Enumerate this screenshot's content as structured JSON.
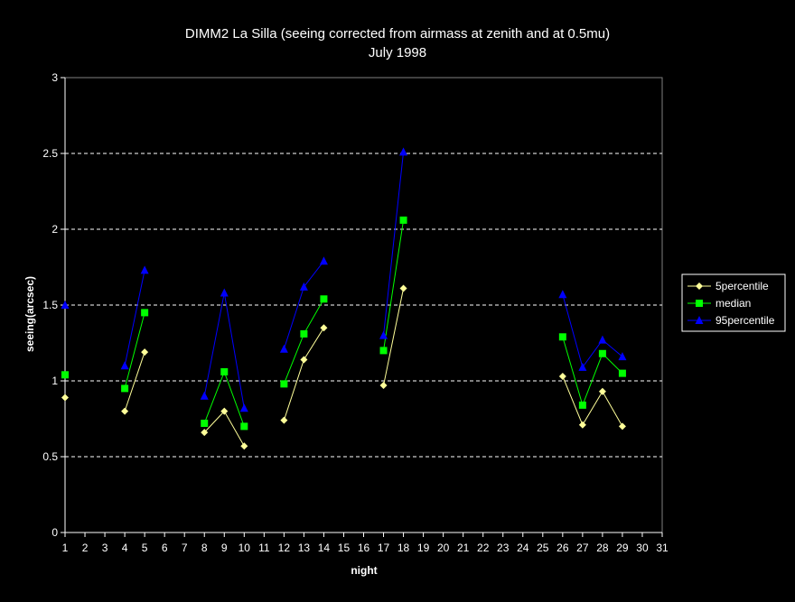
{
  "chart_data": {
    "type": "line",
    "title": "DIMM2 La Silla (seeing corrected from airmass at zenith and at 0.5mu)",
    "subtitle": "July 1998",
    "xlabel": "night",
    "ylabel": "seeing(arcsec)",
    "xlim": [
      1,
      31
    ],
    "ylim": [
      0,
      3
    ],
    "x_ticks": [
      "1",
      "2",
      "3",
      "4",
      "5",
      "6",
      "7",
      "8",
      "9",
      "10",
      "11",
      "12",
      "13",
      "14",
      "15",
      "16",
      "17",
      "18",
      "19",
      "20",
      "21",
      "22",
      "23",
      "24",
      "25",
      "26",
      "27",
      "28",
      "29",
      "30",
      "31"
    ],
    "y_ticks": [
      "0",
      "0.5",
      "1",
      "1.5",
      "2",
      "2.5",
      "3"
    ],
    "grid": "horizontal dashed",
    "legend_position": "right",
    "series": [
      {
        "name": "5percentile",
        "color": "#FFFF99",
        "marker": "diamond",
        "points": [
          [
            1,
            0.89
          ],
          [
            4,
            0.8
          ],
          [
            5,
            1.19
          ],
          [
            8,
            0.66
          ],
          [
            9,
            0.8
          ],
          [
            10,
            0.57
          ],
          [
            12,
            0.74
          ],
          [
            13,
            1.14
          ],
          [
            14,
            1.35
          ],
          [
            17,
            0.97
          ],
          [
            18,
            1.61
          ],
          [
            26,
            1.03
          ],
          [
            27,
            0.71
          ],
          [
            28,
            0.93
          ],
          [
            29,
            0.7
          ]
        ]
      },
      {
        "name": "median",
        "color": "#00FF00",
        "marker": "square",
        "points": [
          [
            1,
            1.04
          ],
          [
            4,
            0.95
          ],
          [
            5,
            1.45
          ],
          [
            8,
            0.72
          ],
          [
            9,
            1.06
          ],
          [
            10,
            0.7
          ],
          [
            12,
            0.98
          ],
          [
            13,
            1.31
          ],
          [
            14,
            1.54
          ],
          [
            17,
            1.2
          ],
          [
            18,
            2.06
          ],
          [
            26,
            1.29
          ],
          [
            27,
            0.84
          ],
          [
            28,
            1.18
          ],
          [
            29,
            1.05
          ]
        ]
      },
      {
        "name": "95percentile",
        "color": "#0000FF",
        "marker": "triangle",
        "points": [
          [
            1,
            1.5
          ],
          [
            4,
            1.1
          ],
          [
            5,
            1.73
          ],
          [
            8,
            0.9
          ],
          [
            9,
            1.58
          ],
          [
            10,
            0.82
          ],
          [
            12,
            1.21
          ],
          [
            13,
            1.62
          ],
          [
            14,
            1.79
          ],
          [
            17,
            1.3
          ],
          [
            18,
            2.51
          ],
          [
            26,
            1.57
          ],
          [
            27,
            1.09
          ],
          [
            28,
            1.27
          ],
          [
            29,
            1.16
          ]
        ]
      }
    ]
  }
}
